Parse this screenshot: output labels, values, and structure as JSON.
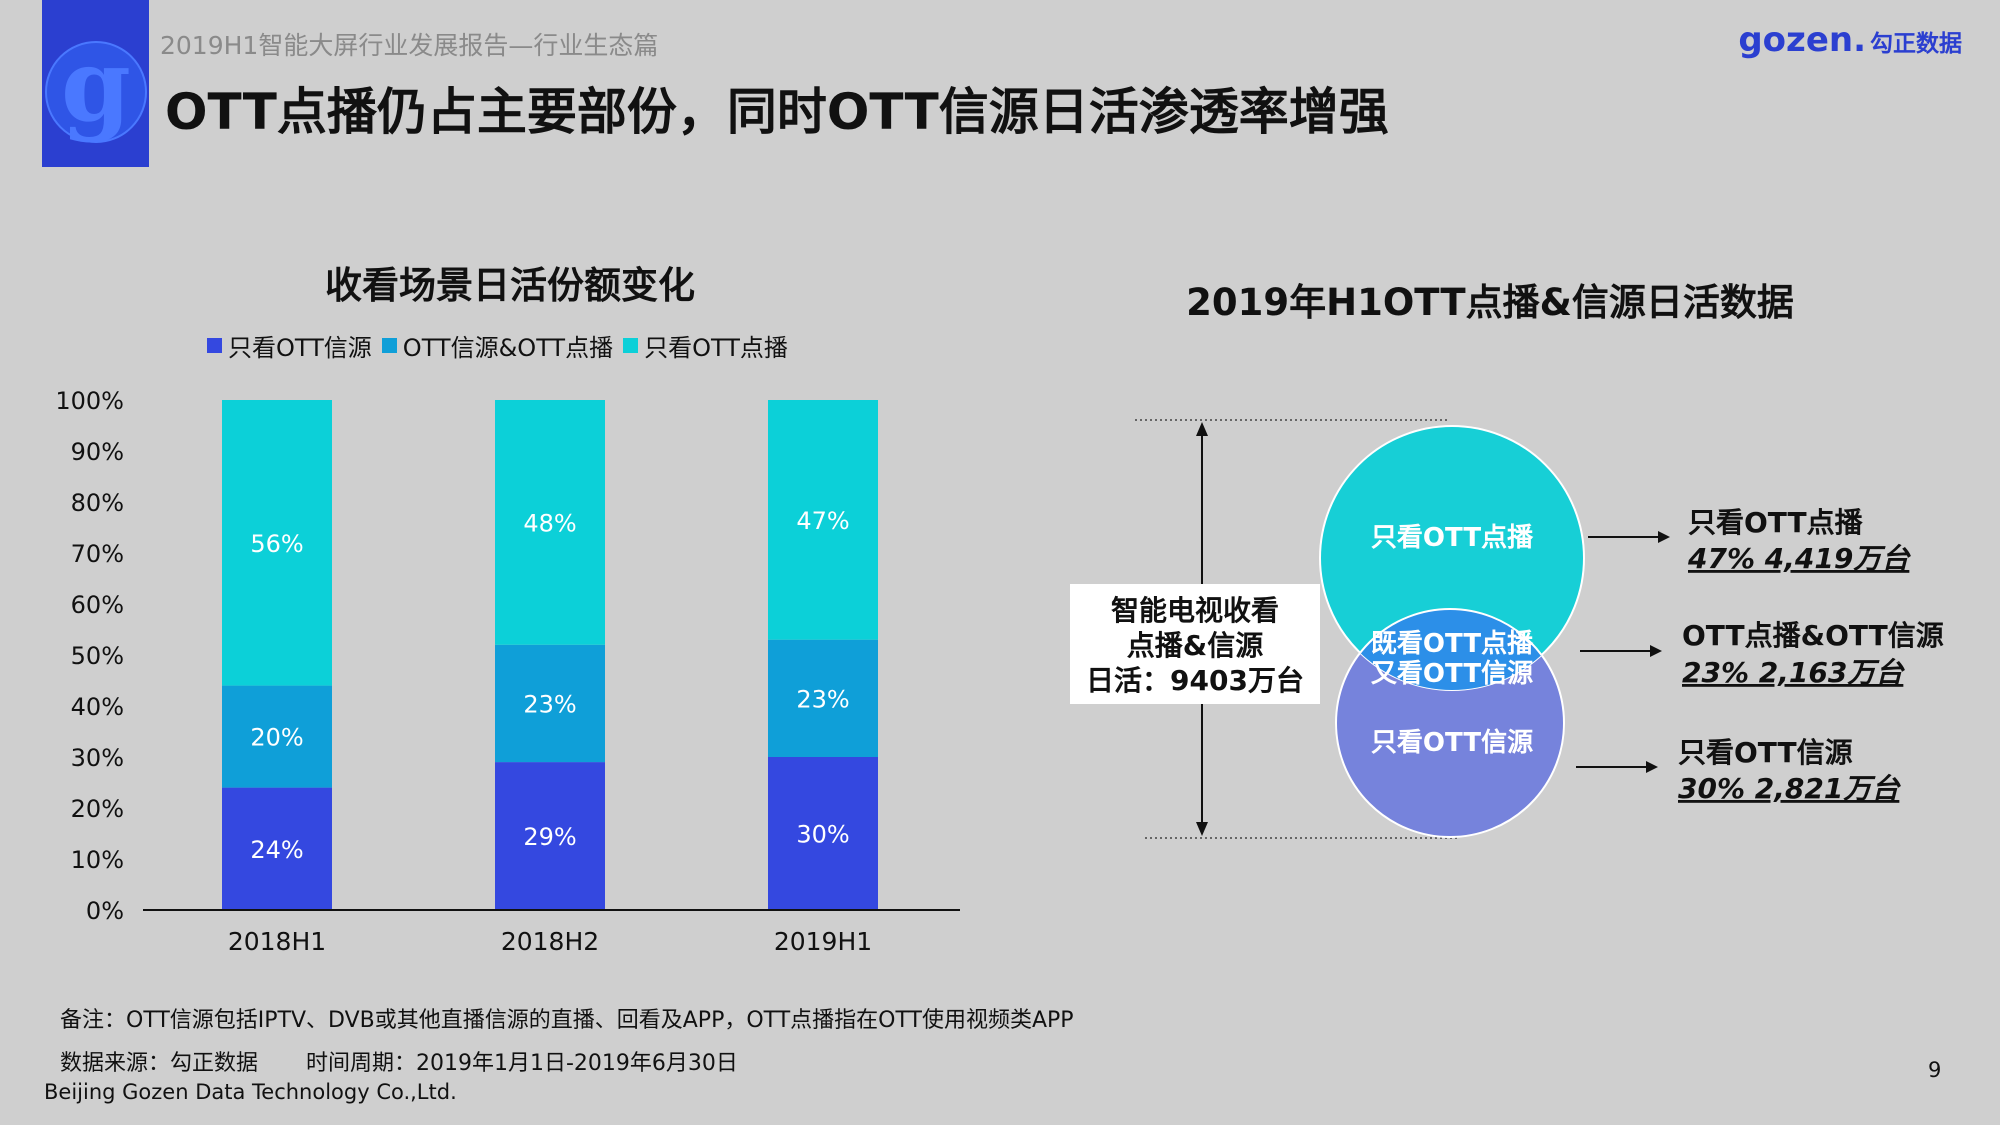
{
  "header": {
    "report_subtitle": "2019H1智能大屏行业发展报告—行业生态篇",
    "page_title": "OTT点播仍占主要部份，同时OTT信源日活渗透率增强",
    "brand_latin": "gozen.",
    "brand_cn": "勾正数据"
  },
  "colors": {
    "background": "#cfcfcf",
    "logo_block": "#2b3fd0",
    "only_ott_source": "#3448e0",
    "ott_both": "#0f9fd8",
    "only_ott_vod": "#0cd0d8",
    "venn_top": "#17cfd6",
    "venn_bottom": "#7683dc"
  },
  "chart_data": [
    {
      "type": "bar",
      "stacked": true,
      "title": "收看场景日活份额变化",
      "categories": [
        "2018H1",
        "2018H2",
        "2019H1"
      ],
      "series": [
        {
          "name": "只看OTT信源",
          "values": [
            24,
            29,
            30
          ],
          "labels": [
            "24%",
            "29%",
            "30%"
          ]
        },
        {
          "name": "OTT信源&OTT点播",
          "values": [
            20,
            23,
            23
          ],
          "labels": [
            "20%",
            "23%",
            "23%"
          ]
        },
        {
          "name": "只看OTT点播",
          "values": [
            56,
            48,
            47
          ],
          "labels": [
            "56%",
            "48%",
            "47%"
          ]
        }
      ],
      "ylim": [
        0,
        100
      ],
      "yticks": [
        "0%",
        "10%",
        "20%",
        "30%",
        "40%",
        "50%",
        "60%",
        "70%",
        "80%",
        "90%",
        "100%"
      ],
      "legend_position": "top",
      "grid": false
    },
    {
      "type": "venn",
      "title": "2019年H1OTT点播&信源日活数据",
      "total_label_lines": [
        "智能电视收看",
        "点播&信源",
        "日活：9403万台"
      ],
      "sets": [
        {
          "name": "只看OTT点播",
          "circle_label": "只看OTT点播",
          "value_label": "47%  4,419万台"
        },
        {
          "name": "OTT点播&OTT信源",
          "circle_label_lines": [
            "既看OTT点播",
            "又看OTT信源"
          ],
          "value_label": "23%  2,163万台"
        },
        {
          "name": "只看OTT信源",
          "circle_label": "只看OTT信源",
          "value_label": "30%  2,821万台"
        }
      ]
    }
  ],
  "footer": {
    "note": "备注：OTT信源包括IPTV、DVB或其他直播信源的直播、回看及APP，OTT点播指在OTT使用视频类APP",
    "source": "数据来源：勾正数据",
    "period": "时间周期：2019年1月1日-2019年6月30日",
    "company": "Beijing Gozen Data Technology Co.,Ltd.",
    "page_number": "9"
  }
}
